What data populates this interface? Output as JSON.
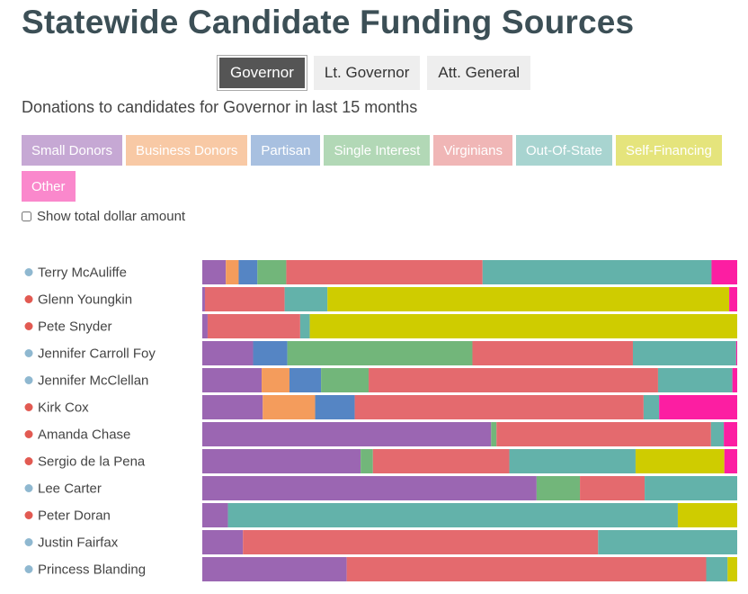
{
  "title": "Statewide Candidate Funding Sources",
  "tabs": [
    {
      "label": "Governor",
      "active": true
    },
    {
      "label": "Lt. Governor",
      "active": false
    },
    {
      "label": "Att. General",
      "active": false
    }
  ],
  "subtitle": "Donations to candidates for Governor in last 15 months",
  "toggle_label": "Show total dollar amount",
  "party_colors": {
    "D": "#8fb8d0",
    "R": "#e25a52"
  },
  "chart_data": {
    "type": "bar",
    "orientation": "horizontal",
    "stacked": "percent",
    "categories": [
      "Terry McAuliffe",
      "Glenn Youngkin",
      "Pete Snyder",
      "Jennifer Carroll Foy",
      "Jennifer McClellan",
      "Kirk Cox",
      "Amanda Chase",
      "Sergio de la Pena",
      "Lee Carter",
      "Peter Doran",
      "Justin Fairfax",
      "Princess Blanding"
    ],
    "party": [
      "D",
      "R",
      "R",
      "D",
      "D",
      "R",
      "R",
      "R",
      "D",
      "R",
      "D",
      "D"
    ],
    "series": [
      {
        "name": "Small Donors",
        "color": "#9b66b2",
        "legend_color": "#c6a8d4",
        "values": [
          4.4,
          0.5,
          1.0,
          9.5,
          11.1,
          11.3,
          54.0,
          29.6,
          62.5,
          4.8,
          7.6,
          27.0
        ]
      },
      {
        "name": "Business Donors",
        "color": "#f49c5c",
        "legend_color": "#f8c9a5",
        "values": [
          2.4,
          0,
          0,
          0,
          5.2,
          9.8,
          0,
          0,
          0,
          0,
          0,
          0
        ]
      },
      {
        "name": "Partisan",
        "color": "#5585c4",
        "legend_color": "#a8c0e0",
        "values": [
          3.5,
          0,
          0,
          6.4,
          5.9,
          7.4,
          0,
          0,
          0,
          0,
          0,
          0
        ]
      },
      {
        "name": "Single Interest",
        "color": "#72b67a",
        "legend_color": "#b2d8b6",
        "values": [
          5.4,
          0,
          0,
          34.6,
          8.9,
          0,
          1.0,
          2.3,
          8.1,
          0,
          0,
          0
        ]
      },
      {
        "name": "Virginians",
        "color": "#e46a6e",
        "legend_color": "#f0b6b6",
        "values": [
          36.7,
          14.9,
          17.3,
          30.0,
          54.1,
          54.0,
          40.1,
          25.5,
          12.1,
          0,
          66.4,
          67.2
        ]
      },
      {
        "name": "Out-Of-State",
        "color": "#63b2aa",
        "legend_color": "#a8d4d0",
        "values": [
          42.8,
          8.0,
          1.8,
          19.3,
          13.9,
          2.9,
          2.4,
          23.6,
          17.3,
          84.1,
          26.0,
          4.0
        ]
      },
      {
        "name": "Self-Financing",
        "color": "#cfcc00",
        "legend_color": "#e5e47c",
        "values": [
          0,
          75.1,
          79.9,
          0,
          0,
          0,
          0,
          16.6,
          0,
          11.1,
          0,
          1.8
        ]
      },
      {
        "name": "Other",
        "color": "#fc1ea2",
        "legend_color": "#fa88cc",
        "values": [
          4.8,
          1.5,
          0,
          0.2,
          0.9,
          14.6,
          2.5,
          2.4,
          0,
          0,
          0,
          0
        ]
      }
    ]
  }
}
